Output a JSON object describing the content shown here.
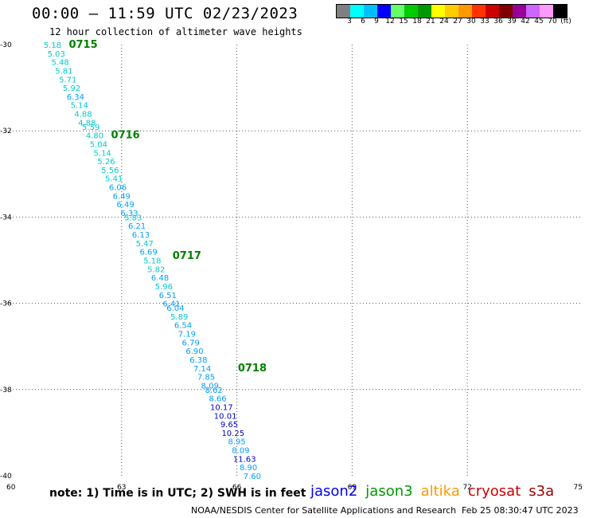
{
  "title": "00:00 – 11:59 UTC 02/23/2023",
  "subtitle": "12 hour collection of altimeter wave heights",
  "legend": {
    "colors": [
      "#808080",
      "#00ffff",
      "#00bfff",
      "#0000ff",
      "#66ff66",
      "#00cc00",
      "#009900",
      "#ffff00",
      "#ffcc00",
      "#ff9900",
      "#ff3300",
      "#cc0000",
      "#800000",
      "#990099",
      "#cc66ff",
      "#ff99ff",
      "#000000"
    ],
    "labels": [
      "3",
      "6",
      "9",
      "12",
      "15",
      "18",
      "21",
      "24",
      "27",
      "30",
      "33",
      "36",
      "39",
      "42",
      "45",
      "70"
    ],
    "unit": "(ft)"
  },
  "note": "note: 1) Time is in UTC; 2) SWH is in feet",
  "satellites": [
    {
      "name": "jason2",
      "color": "#0000ff"
    },
    {
      "name": "jason3",
      "color": "#009900"
    },
    {
      "name": "altika",
      "color": "#ff9900"
    },
    {
      "name": "cryosat",
      "color": "#cc0000"
    },
    {
      "name": "s3a",
      "color": "#990000"
    }
  ],
  "credit": "NOAA/NESDIS Center for Satellite Applications and Research",
  "stamp": "Feb 25 08:30:47 UTC 2023",
  "chart_data": {
    "type": "scatter",
    "xlim": [
      60,
      75
    ],
    "ylim": [
      -40,
      -30
    ],
    "x_ticks": [
      "60",
      "63",
      "66",
      "69",
      "72",
      "75"
    ],
    "y_ticks": [
      "-30",
      "-32",
      "-34",
      "-36",
      "-38",
      "-40"
    ],
    "grid": true,
    "time_labels": [
      {
        "text": "0715",
        "lon": 62.0,
        "lat": -30.0,
        "color": "#008000"
      },
      {
        "text": "0716",
        "lon": 63.1,
        "lat": -32.1,
        "color": "#008000"
      },
      {
        "text": "0717",
        "lon": 64.7,
        "lat": -34.9,
        "color": "#008000"
      },
      {
        "text": "0718",
        "lon": 66.4,
        "lat": -37.5,
        "color": "#008000"
      }
    ],
    "points": [
      {
        "v": "5.18",
        "lon": 61.2,
        "lat": -30.0,
        "color": "#00cccc"
      },
      {
        "v": "5.03",
        "lon": 61.3,
        "lat": -30.2,
        "color": "#00cccc"
      },
      {
        "v": "5.48",
        "lon": 61.4,
        "lat": -30.4,
        "color": "#00cccc"
      },
      {
        "v": "5.81",
        "lon": 61.5,
        "lat": -30.6,
        "color": "#00cccc"
      },
      {
        "v": "5.71",
        "lon": 61.6,
        "lat": -30.8,
        "color": "#00cccc"
      },
      {
        "v": "5.92",
        "lon": 61.7,
        "lat": -31.0,
        "color": "#00cccc"
      },
      {
        "v": "6.34",
        "lon": 61.8,
        "lat": -31.2,
        "color": "#00a0ff"
      },
      {
        "v": "5.14",
        "lon": 61.9,
        "lat": -31.4,
        "color": "#00cccc"
      },
      {
        "v": "4.88",
        "lon": 62.0,
        "lat": -31.6,
        "color": "#00cccc"
      },
      {
        "v": "4.88",
        "lon": 62.1,
        "lat": -31.8,
        "color": "#00cccc"
      },
      {
        "v": "5.59",
        "lon": 62.2,
        "lat": -31.9,
        "color": "#00cccc"
      },
      {
        "v": "4.80",
        "lon": 62.3,
        "lat": -32.1,
        "color": "#00cccc"
      },
      {
        "v": "5.04",
        "lon": 62.4,
        "lat": -32.3,
        "color": "#00cccc"
      },
      {
        "v": "5.14",
        "lon": 62.5,
        "lat": -32.5,
        "color": "#00cccc"
      },
      {
        "v": "5.26",
        "lon": 62.6,
        "lat": -32.7,
        "color": "#00cccc"
      },
      {
        "v": "5.56",
        "lon": 62.7,
        "lat": -32.9,
        "color": "#00cccc"
      },
      {
        "v": "5.41",
        "lon": 62.8,
        "lat": -33.1,
        "color": "#00cccc"
      },
      {
        "v": "6.06",
        "lon": 62.9,
        "lat": -33.3,
        "color": "#00a0ff"
      },
      {
        "v": "6.49",
        "lon": 63.0,
        "lat": -33.5,
        "color": "#00a0ff"
      },
      {
        "v": "6.49",
        "lon": 63.1,
        "lat": -33.7,
        "color": "#00a0ff"
      },
      {
        "v": "6.33",
        "lon": 63.2,
        "lat": -33.9,
        "color": "#00a0ff"
      },
      {
        "v": "5.83",
        "lon": 63.3,
        "lat": -34.0,
        "color": "#00cccc"
      },
      {
        "v": "6.21",
        "lon": 63.4,
        "lat": -34.2,
        "color": "#00a0ff"
      },
      {
        "v": "6.13",
        "lon": 63.5,
        "lat": -34.4,
        "color": "#00a0ff"
      },
      {
        "v": "5.47",
        "lon": 63.6,
        "lat": -34.6,
        "color": "#00cccc"
      },
      {
        "v": "6.69",
        "lon": 63.7,
        "lat": -34.8,
        "color": "#00a0ff"
      },
      {
        "v": "5.18",
        "lon": 63.8,
        "lat": -35.0,
        "color": "#00cccc"
      },
      {
        "v": "5.82",
        "lon": 63.9,
        "lat": -35.2,
        "color": "#00cccc"
      },
      {
        "v": "6.48",
        "lon": 64.0,
        "lat": -35.4,
        "color": "#00a0ff"
      },
      {
        "v": "5.96",
        "lon": 64.1,
        "lat": -35.6,
        "color": "#00cccc"
      },
      {
        "v": "6.51",
        "lon": 64.2,
        "lat": -35.8,
        "color": "#00a0ff"
      },
      {
        "v": "6.41",
        "lon": 64.3,
        "lat": -36.0,
        "color": "#00a0ff"
      },
      {
        "v": "6.04",
        "lon": 64.4,
        "lat": -36.1,
        "color": "#00a0ff"
      },
      {
        "v": "5.89",
        "lon": 64.5,
        "lat": -36.3,
        "color": "#00cccc"
      },
      {
        "v": "6.54",
        "lon": 64.6,
        "lat": -36.5,
        "color": "#00a0ff"
      },
      {
        "v": "7.19",
        "lon": 64.7,
        "lat": -36.7,
        "color": "#00a0ff"
      },
      {
        "v": "6.79",
        "lon": 64.8,
        "lat": -36.9,
        "color": "#00a0ff"
      },
      {
        "v": "6.90",
        "lon": 64.9,
        "lat": -37.1,
        "color": "#00a0ff"
      },
      {
        "v": "6.38",
        "lon": 65.0,
        "lat": -37.3,
        "color": "#00a0ff"
      },
      {
        "v": "7.14",
        "lon": 65.1,
        "lat": -37.5,
        "color": "#00a0ff"
      },
      {
        "v": "7.85",
        "lon": 65.2,
        "lat": -37.7,
        "color": "#00a0ff"
      },
      {
        "v": "8.09",
        "lon": 65.3,
        "lat": -37.9,
        "color": "#00a0ff"
      },
      {
        "v": "8.62",
        "lon": 65.4,
        "lat": -38.0,
        "color": "#00a0ff"
      },
      {
        "v": "8.66",
        "lon": 65.5,
        "lat": -38.2,
        "color": "#00a0ff"
      },
      {
        "v": "10.17",
        "lon": 65.6,
        "lat": -38.4,
        "color": "#0000cc"
      },
      {
        "v": "10.01",
        "lon": 65.7,
        "lat": -38.6,
        "color": "#0000cc"
      },
      {
        "v": "9.65",
        "lon": 65.8,
        "lat": -38.8,
        "color": "#0000cc"
      },
      {
        "v": "10.25",
        "lon": 65.9,
        "lat": -39.0,
        "color": "#0000cc"
      },
      {
        "v": "8.95",
        "lon": 66.0,
        "lat": -39.2,
        "color": "#00a0ff"
      },
      {
        "v": "8.09",
        "lon": 66.1,
        "lat": -39.4,
        "color": "#00a0ff"
      },
      {
        "v": "11.63",
        "lon": 66.2,
        "lat": -39.6,
        "color": "#0000cc"
      },
      {
        "v": "8.90",
        "lon": 66.3,
        "lat": -39.8,
        "color": "#00a0ff"
      },
      {
        "v": "7.60",
        "lon": 66.4,
        "lat": -40.0,
        "color": "#00a0ff"
      }
    ]
  }
}
